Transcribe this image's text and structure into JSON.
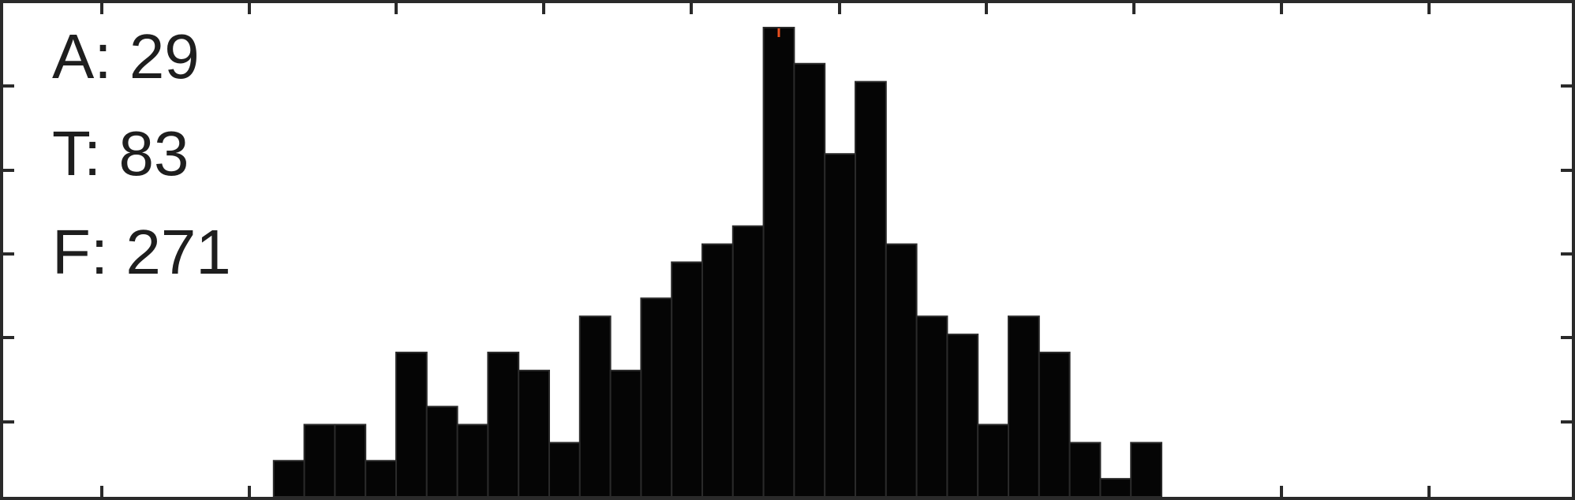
{
  "chart_data": {
    "type": "bar",
    "title": "",
    "xlabel": "",
    "ylabel": "",
    "grid": false,
    "ylim": [
      0,
      26
    ],
    "values": [
      0,
      2,
      4,
      4,
      2,
      8,
      5,
      4,
      8,
      7,
      3,
      10,
      7,
      11,
      13,
      14,
      15,
      26,
      24,
      19,
      23,
      14,
      10,
      9,
      4,
      10,
      8,
      3,
      1,
      3
    ],
    "marker": {
      "bar_index": 17,
      "color": "#e8501f"
    },
    "annotations": [
      {
        "label": "A",
        "value": "29",
        "text": "A: 29"
      },
      {
        "label": "T",
        "value": "83",
        "text": "T: 83"
      },
      {
        "label": "F",
        "value": "271",
        "text": "F: 271"
      }
    ]
  }
}
